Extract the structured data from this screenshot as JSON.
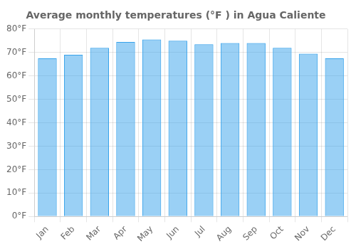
{
  "chart_data": {
    "type": "bar",
    "title": "Average monthly temperatures (°F ) in Agua Caliente",
    "categories": [
      "Jan",
      "Feb",
      "Mar",
      "Apr",
      "May",
      "Jun",
      "Jul",
      "Aug",
      "Sep",
      "Oct",
      "Nov",
      "Dec"
    ],
    "values": [
      67.5,
      69.0,
      72.0,
      74.5,
      75.5,
      75.0,
      73.5,
      74.0,
      74.0,
      72.0,
      69.5,
      67.5
    ],
    "ylim": [
      0,
      80
    ],
    "yticks": [
      {
        "value": 0,
        "label": "0°F"
      },
      {
        "value": 10,
        "label": "10°F"
      },
      {
        "value": 20,
        "label": "20°F"
      },
      {
        "value": 30,
        "label": "30°F"
      },
      {
        "value": 40,
        "label": "40°F"
      },
      {
        "value": 50,
        "label": "50°F"
      },
      {
        "value": 60,
        "label": "60°F"
      },
      {
        "value": 70,
        "label": "70°F"
      },
      {
        "value": 80,
        "label": "80°F"
      }
    ],
    "grid": true
  }
}
